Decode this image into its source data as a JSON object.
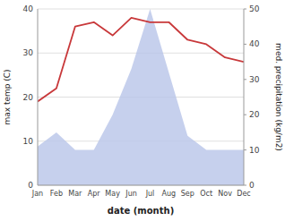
{
  "chart_data": {
    "type": "line",
    "categories": [
      "Jan",
      "Feb",
      "Mar",
      "Apr",
      "May",
      "Jun",
      "Jul",
      "Aug",
      "Sep",
      "Oct",
      "Nov",
      "Dec"
    ],
    "series": [
      {
        "type": "area",
        "axis": "y2",
        "color": "#b8c4e8",
        "values": [
          11,
          15,
          10,
          10,
          20,
          33,
          50,
          32,
          14,
          10,
          10,
          10
        ]
      },
      {
        "type": "line",
        "color": "#c8383a",
        "values": [
          19,
          22,
          36,
          37,
          34,
          38,
          37,
          37,
          33,
          32,
          29,
          28
        ]
      }
    ],
    "ylim": [
      0,
      40
    ],
    "yticks": [
      0,
      10,
      20,
      30,
      40
    ],
    "y2lim": [
      0,
      50
    ],
    "y2ticks": [
      0,
      10,
      20,
      30,
      40,
      50
    ],
    "xlabel": "date (month)",
    "ylabel": "max temp (C)",
    "y2label": "med. precipitation (kg/m2)",
    "grid": true
  }
}
